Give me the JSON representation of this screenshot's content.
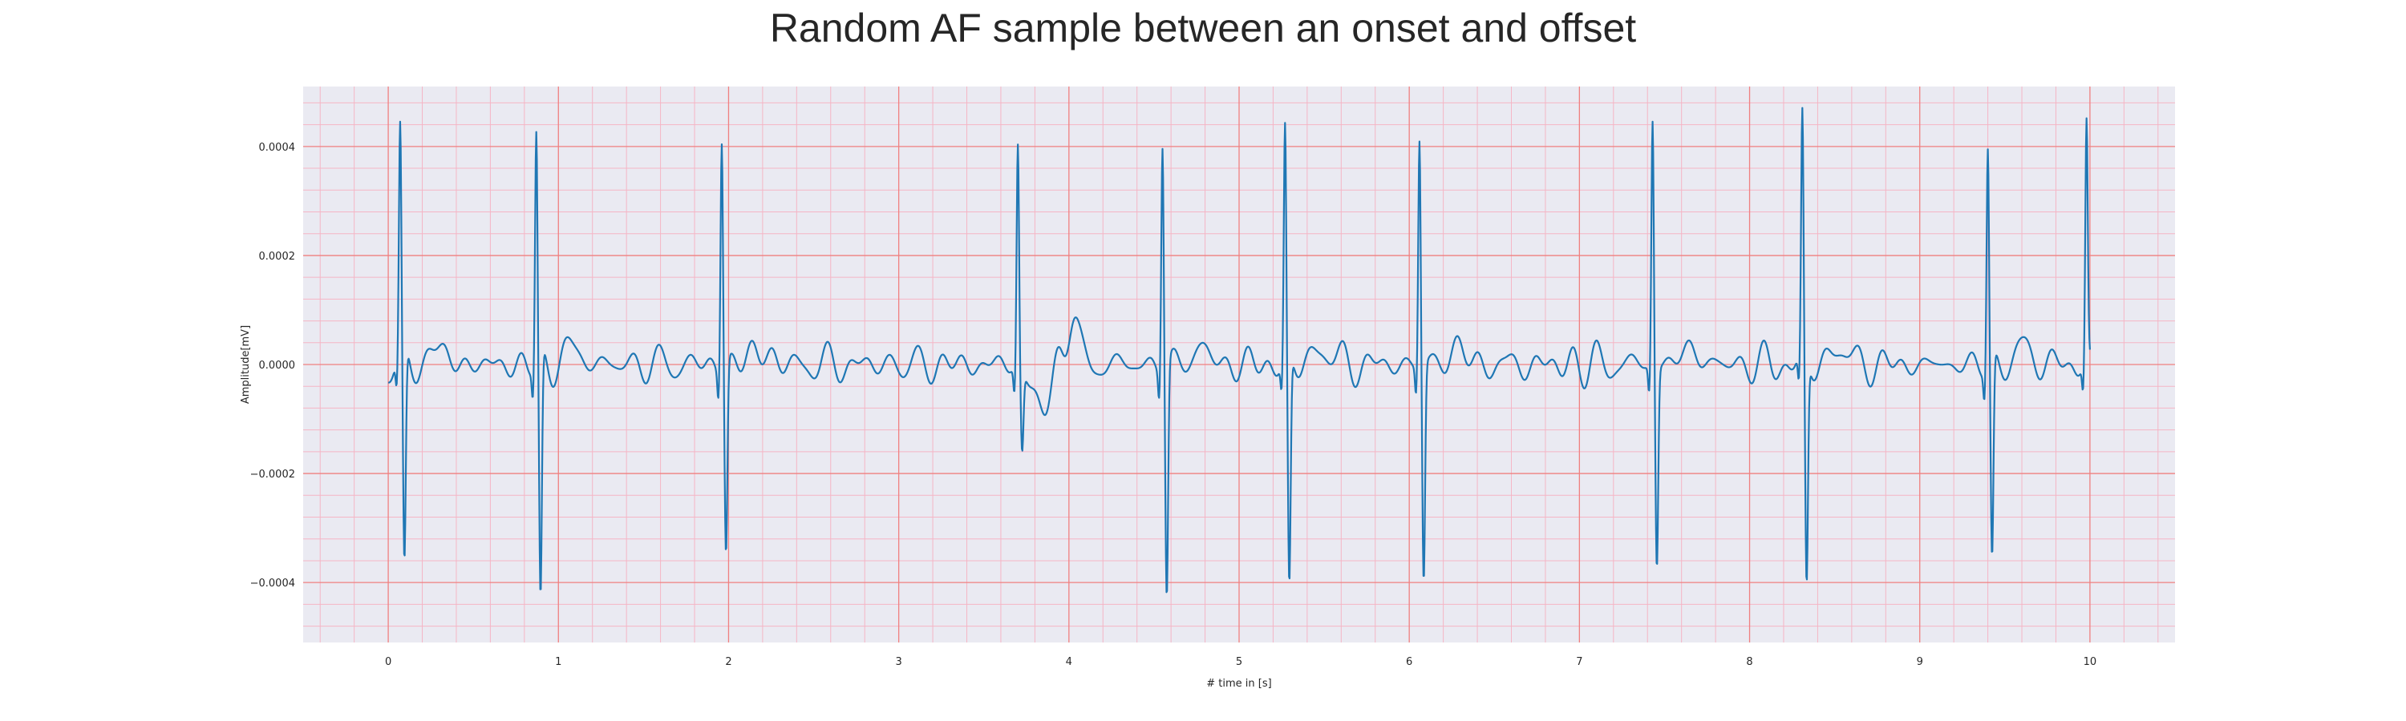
{
  "chart_data": {
    "type": "line",
    "title": "Random AF sample between an onset and offset",
    "xlabel": "# time in [s]",
    "ylabel": "Amplitude[mV]",
    "xlim": [
      -0.5,
      10.5
    ],
    "ylim": [
      -0.00051,
      0.00051
    ],
    "xticks": [
      0,
      1,
      2,
      3,
      4,
      5,
      6,
      7,
      8,
      9,
      10
    ],
    "xtick_labels": [
      "0",
      "1",
      "2",
      "3",
      "4",
      "5",
      "6",
      "7",
      "8",
      "9",
      "10"
    ],
    "yticks": [
      0.0004,
      0.0002,
      0.0,
      -0.0002,
      -0.0004
    ],
    "ytick_labels": [
      "0.0004",
      "0.0002",
      "0.0000",
      "−0.0002",
      "−0.0004"
    ],
    "grid": {
      "major": true,
      "minor": true,
      "major_color": "#f08080",
      "minor_color": "#f5b5c5"
    },
    "background": "#eaeaf2",
    "line_color": "#1f77b4",
    "beats": [
      {
        "t": 0.07,
        "peak": 0.000415,
        "trough": -0.0004
      },
      {
        "t": 0.87,
        "peak": 0.000425,
        "trough": -0.000455
      },
      {
        "t": 1.96,
        "peak": 0.000428,
        "trough": -0.000345
      },
      {
        "t": 3.7,
        "peak": 0.000405,
        "trough": -0.00015
      },
      {
        "t": 4.55,
        "peak": 0.00042,
        "trough": -0.000425
      },
      {
        "t": 5.27,
        "peak": 0.000425,
        "trough": -0.000425
      },
      {
        "t": 6.06,
        "peak": 0.000422,
        "trough": -0.000395
      },
      {
        "t": 7.43,
        "peak": 0.000455,
        "trough": -0.000365
      },
      {
        "t": 8.31,
        "peak": 0.000445,
        "trough": -0.000415
      },
      {
        "t": 9.4,
        "peak": 0.0004,
        "trough": -0.000375
      },
      {
        "t": 9.98,
        "peak": 0.00043,
        "trough": -1e-05
      }
    ],
    "baseline_noise_amplitude": 4e-05,
    "x_range": [
      0.0,
      10.0
    ],
    "sampling_rate_hz": 100
  }
}
